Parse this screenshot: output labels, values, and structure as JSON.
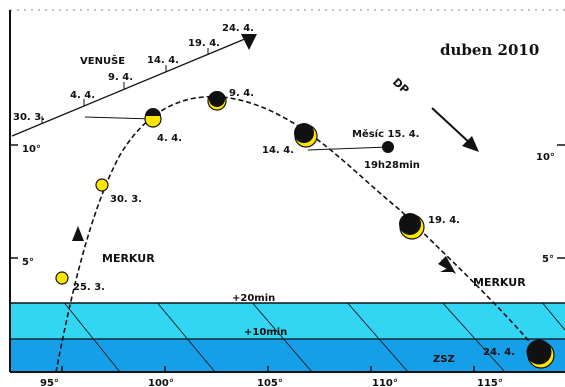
{
  "title": "duben 2010",
  "direction_label": "DP",
  "horizon_band_labels": {
    "outer": "+20min",
    "inner": "+10min",
    "direction": "ZSZ"
  },
  "x_ticks": [
    "95°",
    "100°",
    "105°",
    "110°",
    "115°"
  ],
  "y_ticks": {
    "ten": "10°",
    "five": "5°"
  },
  "merkur": {
    "name": "MERKUR",
    "positions": [
      {
        "date": "25. 3."
      },
      {
        "date": "30. 3."
      },
      {
        "date": "4. 4."
      },
      {
        "date": "9. 4."
      },
      {
        "date": "14. 4."
      },
      {
        "date": "19. 4."
      },
      {
        "date": "24. 4."
      }
    ]
  },
  "venuse": {
    "name": "VENUŠE",
    "dates": [
      "30. 3.",
      "4. 4.",
      "9. 4.",
      "14. 4.",
      "19. 4.",
      "24. 4."
    ]
  },
  "mesic": {
    "label": "Měsíc 15. 4.",
    "time": "19h28min"
  }
}
